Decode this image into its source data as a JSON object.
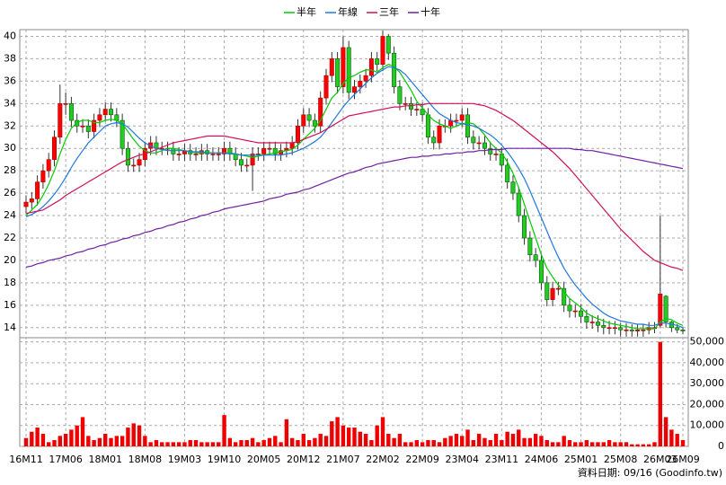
{
  "chart_data": {
    "type": "candlestick",
    "legend": "top",
    "grid": true,
    "footer": "資料日期: 09/16 (Goodinfo.tw)",
    "up_color": "#ff0000",
    "down_color": "#22cc22",
    "volume_color": "#ee0000",
    "categories": [
      "16M11",
      null,
      null,
      null,
      null,
      null,
      null,
      "17M06",
      null,
      null,
      null,
      null,
      null,
      null,
      "18M01",
      null,
      null,
      null,
      null,
      null,
      null,
      "18M08",
      null,
      null,
      null,
      null,
      null,
      null,
      "19M03",
      null,
      null,
      null,
      null,
      null,
      null,
      "19M10",
      null,
      null,
      null,
      null,
      null,
      null,
      "20M05",
      null,
      null,
      null,
      null,
      null,
      null,
      "20M12",
      null,
      null,
      null,
      null,
      null,
      null,
      "21M07",
      null,
      null,
      null,
      null,
      null,
      null,
      "22M02",
      null,
      null,
      null,
      null,
      null,
      null,
      "22M09",
      null,
      null,
      null,
      null,
      null,
      null,
      "23M04",
      null,
      null,
      null,
      null,
      null,
      null,
      "23M11",
      null,
      null,
      null,
      null,
      null,
      null,
      "24M06",
      null,
      null,
      null,
      null,
      null,
      null,
      "25M01",
      null,
      null,
      null,
      null,
      null,
      null,
      "25M08",
      null,
      null,
      null,
      null,
      null,
      null,
      "26M03",
      null,
      null,
      null,
      "26M09"
    ],
    "open": [
      24.8,
      25.2,
      25.5,
      27,
      28,
      29,
      31,
      34,
      34,
      32.5,
      32,
      32,
      31.5,
      32.5,
      33,
      33.5,
      33,
      32.5,
      30,
      28.5,
      28.5,
      29,
      30,
      30.5,
      30,
      30,
      30,
      29.5,
      29.5,
      29.8,
      29.5,
      29.5,
      29.8,
      29.5,
      29.5,
      29.5,
      30,
      29.5,
      29,
      28.5,
      28.5,
      29.5,
      29.5,
      30,
      30,
      29.5,
      29.8,
      30,
      30.5,
      32,
      33,
      32.5,
      32,
      34.5,
      36.5,
      38,
      35.5,
      39,
      35,
      35.5,
      36,
      36.5,
      38,
      37.5,
      40,
      38.5,
      35.5,
      34,
      34,
      33.5,
      33.5,
      33,
      31,
      30.5,
      32,
      32,
      32.5,
      32.5,
      33,
      31,
      30.5,
      30.5,
      30,
      29.5,
      29.5,
      28.5,
      27,
      26,
      24,
      22,
      20.5,
      20,
      18,
      16.5,
      17.5,
      17.5,
      16,
      15.5,
      15.5,
      15,
      14.5,
      14.5,
      14.2,
      14,
      14,
      14,
      13.8,
      13.8,
      13.7,
      13.8,
      13.8,
      14,
      14.2,
      16.8,
      14.5,
      14,
      13.8
    ],
    "high": [
      25.8,
      26.1,
      27.6,
      28.6,
      29.6,
      31.6,
      35.7,
      35,
      34.6,
      33.1,
      32.6,
      32.6,
      33.1,
      33.6,
      34.1,
      34.1,
      33.6,
      33.1,
      30.6,
      29.1,
      29.6,
      30.6,
      31.1,
      31.1,
      30.6,
      30.6,
      30.6,
      30.1,
      30.4,
      30.4,
      30.1,
      30.4,
      30.4,
      30.1,
      30.1,
      30.6,
      30.6,
      30.1,
      29.6,
      29.1,
      30.1,
      30.1,
      30.6,
      30.6,
      30.6,
      30.4,
      30.6,
      31.1,
      32.6,
      33.6,
      33.6,
      33.1,
      35.1,
      37.1,
      38.6,
      38.6,
      40,
      39.6,
      36.1,
      36.6,
      37.1,
      38.6,
      38.6,
      40.5,
      40.2,
      39.1,
      36.1,
      34.6,
      34.6,
      34.1,
      34.1,
      33.6,
      31.6,
      32.6,
      32.6,
      33.1,
      33.1,
      33.6,
      33.6,
      31.6,
      31.1,
      31.1,
      30.6,
      30.1,
      30.1,
      29.1,
      27.6,
      26.6,
      24.6,
      22.6,
      21.1,
      20.6,
      18.6,
      18.1,
      18.1,
      18.1,
      16.6,
      16.1,
      16.1,
      15.6,
      15.1,
      15.1,
      14.8,
      14.6,
      14.6,
      14.4,
      14.4,
      14.3,
      14.3,
      14.3,
      14.5,
      14.5,
      24,
      16.9,
      14.6,
      14.3,
      14
    ],
    "low": [
      24.2,
      24.6,
      24.9,
      26.4,
      27.4,
      28.4,
      30.4,
      33,
      31.9,
      31.4,
      31.4,
      30.9,
      30.9,
      31.9,
      32.4,
      32.4,
      31.9,
      29.4,
      27.9,
      27.9,
      27.9,
      28.4,
      29.4,
      29.4,
      29.4,
      29.4,
      28.9,
      28.9,
      28.9,
      28.9,
      28.9,
      28.9,
      28.9,
      28.9,
      28.9,
      28.9,
      28.9,
      28.4,
      27.9,
      27.9,
      26.2,
      28.9,
      28.9,
      29.4,
      28.9,
      28.9,
      29.2,
      29.4,
      29.9,
      31.4,
      31.9,
      31.4,
      31.4,
      33.9,
      35.9,
      34.9,
      34.9,
      34.4,
      34.4,
      34.9,
      35.4,
      35.9,
      36.9,
      36.9,
      37.9,
      34.9,
      33.4,
      33.4,
      32.9,
      32.9,
      32.4,
      30.4,
      29.9,
      29.9,
      31.4,
      31.4,
      31.9,
      31.9,
      30.4,
      29.9,
      29.9,
      29.4,
      28.9,
      28.9,
      27.9,
      26.4,
      25.4,
      23.4,
      21.4,
      19.9,
      19.4,
      17.4,
      15.9,
      15.9,
      16.9,
      15.4,
      14.9,
      14.9,
      14.4,
      13.9,
      13.9,
      13.6,
      13.4,
      13.4,
      13.4,
      13.2,
      13.2,
      13.2,
      13.2,
      13.2,
      13.4,
      13.5,
      14,
      14,
      13.6,
      13.5,
      13.4
    ],
    "close": [
      25.2,
      25.5,
      27,
      28,
      29,
      31,
      34,
      34,
      32.5,
      32,
      32,
      31.5,
      32.5,
      33,
      33.5,
      33,
      32.5,
      30,
      28.5,
      28.5,
      29,
      30,
      30.5,
      30,
      30,
      30,
      29.5,
      29.5,
      29.8,
      29.5,
      29.5,
      29.8,
      29.5,
      29.5,
      29.5,
      30,
      29.5,
      29,
      28.5,
      28.5,
      29.5,
      29.5,
      30,
      30,
      29.5,
      29.8,
      30,
      30.5,
      32,
      33,
      32.5,
      32,
      34.5,
      36.5,
      38,
      35.5,
      39,
      35,
      35.5,
      36,
      36.5,
      38,
      37.5,
      40,
      38.5,
      35.5,
      34,
      34,
      33.5,
      33.5,
      33,
      31,
      30.5,
      32,
      32,
      32.5,
      32.5,
      33,
      31,
      30.5,
      30.5,
      30,
      29.5,
      29.5,
      28.5,
      27,
      26,
      24,
      22,
      20.5,
      20,
      18,
      16.5,
      17.5,
      17.5,
      16,
      15.5,
      15.5,
      15,
      14.5,
      14.5,
      14.2,
      14,
      14,
      14,
      13.8,
      13.8,
      13.7,
      13.8,
      13.8,
      14,
      14,
      17,
      14.5,
      14,
      13.8,
      13.7
    ],
    "volume": [
      4000,
      7000,
      9000,
      6000,
      2000,
      3000,
      5000,
      6000,
      8000,
      10000,
      14000,
      5000,
      3000,
      4000,
      6000,
      4000,
      5000,
      5000,
      9000,
      11000,
      10000,
      5000,
      2000,
      3000,
      2000,
      2000,
      2000,
      2000,
      2000,
      3000,
      3000,
      2000,
      2000,
      2000,
      2000,
      15000,
      4000,
      2000,
      3000,
      3000,
      4000,
      2000,
      3000,
      4000,
      5000,
      2000,
      13000,
      4000,
      3000,
      6000,
      3000,
      4000,
      6000,
      5000,
      12000,
      14000,
      10000,
      9000,
      9000,
      7000,
      6000,
      3000,
      10000,
      14000,
      6000,
      4000,
      6000,
      2000,
      2000,
      3000,
      2000,
      3000,
      3000,
      2000,
      4000,
      5000,
      6000,
      5000,
      8000,
      3000,
      6000,
      4000,
      3000,
      6000,
      3000,
      7000,
      6000,
      8000,
      4000,
      4000,
      6000,
      5000,
      3000,
      2000,
      2000,
      5000,
      3000,
      2000,
      2000,
      3000,
      2000,
      2000,
      2000,
      3000,
      2000,
      2000,
      2000,
      1000,
      1000,
      1000,
      1000,
      2000,
      50000,
      14000,
      8000,
      6000,
      3000
    ],
    "moving_averages": [
      {
        "name": "半年",
        "color": "#00cc00",
        "values": [
          24,
          24.5,
          25,
          25.8,
          26.8,
          28,
          29.5,
          30.8,
          31.8,
          32.3,
          32.5,
          32.5,
          32.3,
          32.3,
          32.5,
          32.6,
          32.5,
          32.2,
          31.5,
          30.8,
          30.2,
          29.8,
          29.6,
          29.6,
          29.8,
          30,
          30,
          29.9,
          29.8,
          29.7,
          29.6,
          29.6,
          29.6,
          29.6,
          29.6,
          29.6,
          29.6,
          29.5,
          29.4,
          29.3,
          29.2,
          29.3,
          29.4,
          29.5,
          29.6,
          29.7,
          29.8,
          29.9,
          30.3,
          30.8,
          31.3,
          31.8,
          32.5,
          33.5,
          34.5,
          35,
          35.8,
          36.3,
          36.5,
          36.8,
          37,
          37,
          36.8,
          37.2,
          37.5,
          37.3,
          36.8,
          36,
          35.2,
          34.2,
          33.6,
          33,
          32.5,
          32.2,
          32,
          31.8,
          32,
          32.2,
          32.3,
          32.2,
          31.8,
          31.2,
          30.5,
          30,
          29.6,
          28.8,
          27.8,
          26.5,
          25,
          23.5,
          22,
          20.5,
          19.3,
          18.5,
          17.8,
          17.2,
          16.6,
          16.2,
          15.8,
          15.3,
          15,
          14.8,
          14.6,
          14.4,
          14.3,
          14.2,
          14.1,
          14,
          13.9,
          13.9,
          13.9,
          13.9,
          14.5,
          14.8,
          14.7,
          14.4,
          14.2
        ]
      },
      {
        "name": "年線",
        "color": "#1e78dc",
        "values": [
          23.9,
          24.1,
          24.4,
          24.8,
          25.3,
          25.9,
          26.6,
          27.4,
          28.3,
          29.1,
          29.8,
          30.5,
          31,
          31.5,
          32,
          32.2,
          32.3,
          32.2,
          31.9,
          31.4,
          30.9,
          30.5,
          30.2,
          30,
          29.9,
          29.8,
          29.8,
          29.8,
          29.8,
          29.7,
          29.7,
          29.7,
          29.6,
          29.6,
          29.6,
          29.6,
          29.5,
          29.5,
          29.4,
          29.4,
          29.4,
          29.4,
          29.4,
          29.4,
          29.4,
          29.4,
          29.5,
          29.6,
          29.8,
          30,
          30.3,
          30.6,
          31,
          31.6,
          32.3,
          33,
          33.7,
          34.3,
          34.8,
          35.3,
          35.8,
          36.3,
          36.7,
          37,
          37.3,
          37.2,
          37,
          36.6,
          36,
          35.4,
          34.8,
          34.2,
          33.6,
          33.1,
          32.8,
          32.5,
          32.3,
          32.2,
          32.1,
          32,
          31.8,
          31.5,
          31.2,
          30.8,
          30.3,
          29.7,
          29,
          28.2,
          27.3,
          26.2,
          25,
          23.8,
          22.6,
          21.4,
          20.3,
          19.3,
          18.5,
          17.8,
          17.2,
          16.6,
          16.1,
          15.7,
          15.3,
          15,
          14.8,
          14.6,
          14.5,
          14.4,
          14.3,
          14.3,
          14.2,
          14.2,
          14.4,
          14.4,
          14.3,
          14.2,
          14
        ]
      },
      {
        "name": "三年",
        "color": "#d0105a",
        "values": [
          24.2,
          24.3,
          24.4,
          24.5,
          24.8,
          25.1,
          25.4,
          25.8,
          26.1,
          26.4,
          26.7,
          27,
          27.3,
          27.6,
          27.9,
          28.2,
          28.5,
          28.8,
          29,
          29.2,
          29.4,
          29.5,
          29.7,
          29.9,
          30.1,
          30.3,
          30.5,
          30.6,
          30.7,
          30.8,
          30.9,
          31,
          31.1,
          31.1,
          31.1,
          31.1,
          31,
          30.9,
          30.8,
          30.7,
          30.6,
          30.5,
          30.5,
          30.5,
          30.5,
          30.5,
          30.5,
          30.5,
          30.6,
          30.8,
          31,
          31.2,
          31.4,
          31.7,
          32,
          32.3,
          32.6,
          32.9,
          33,
          33.1,
          33.2,
          33.3,
          33.4,
          33.5,
          33.6,
          33.7,
          33.7,
          33.8,
          33.8,
          33.9,
          33.9,
          34,
          34,
          34,
          34,
          34,
          34,
          34,
          34,
          34,
          33.9,
          33.8,
          33.6,
          33.4,
          33.1,
          32.8,
          32.5,
          32.1,
          31.7,
          31.3,
          30.9,
          30.5,
          30.1,
          29.7,
          29.2,
          28.7,
          28.2,
          27.6,
          27,
          26.4,
          25.8,
          25.2,
          24.6,
          24,
          23.4,
          22.8,
          22.3,
          21.8,
          21.3,
          20.8,
          20.4,
          20,
          19.8,
          19.6,
          19.4,
          19.3,
          19.1
        ]
      },
      {
        "name": "十年",
        "color": "#7020a0",
        "values": [
          19.4,
          19.5,
          19.7,
          19.8,
          20,
          20.1,
          20.2,
          20.4,
          20.5,
          20.7,
          20.8,
          21,
          21.1,
          21.3,
          21.4,
          21.6,
          21.7,
          21.9,
          22,
          22.2,
          22.3,
          22.5,
          22.6,
          22.8,
          22.9,
          23.1,
          23.2,
          23.4,
          23.5,
          23.7,
          23.8,
          24,
          24.1,
          24.3,
          24.4,
          24.6,
          24.7,
          24.8,
          24.9,
          25,
          25.1,
          25.2,
          25.3,
          25.5,
          25.6,
          25.7,
          25.9,
          26,
          26.1,
          26.3,
          26.4,
          26.6,
          26.8,
          27,
          27.2,
          27.4,
          27.6,
          27.8,
          27.9,
          28.1,
          28.3,
          28.4,
          28.6,
          28.7,
          28.8,
          28.9,
          29,
          29.1,
          29.2,
          29.2,
          29.3,
          29.3,
          29.4,
          29.4,
          29.5,
          29.5,
          29.6,
          29.6,
          29.7,
          29.7,
          29.8,
          29.8,
          29.9,
          29.9,
          29.9,
          30,
          30,
          30,
          30,
          30,
          30,
          30,
          30,
          30,
          30,
          30,
          30,
          29.9,
          29.9,
          29.8,
          29.8,
          29.7,
          29.6,
          29.5,
          29.4,
          29.3,
          29.2,
          29.1,
          29,
          28.9,
          28.8,
          28.7,
          28.6,
          28.5,
          28.4,
          28.3,
          28.2
        ]
      }
    ],
    "ylim": [
      13.1,
      40.6
    ],
    "yticks": [
      14,
      16,
      18,
      20,
      22,
      24,
      26,
      28,
      30,
      32,
      34,
      36,
      38,
      40
    ],
    "volume_ylim": [
      0,
      52000
    ],
    "volume_yticks": [
      0,
      {
        "value": 10000,
        "label": "10,000"
      },
      {
        "value": 20000,
        "label": "20,000"
      },
      {
        "value": 30000,
        "label": "30,000"
      },
      {
        "value": 40000,
        "label": "40,000"
      },
      {
        "value": 50000,
        "label": "50,000"
      }
    ]
  }
}
